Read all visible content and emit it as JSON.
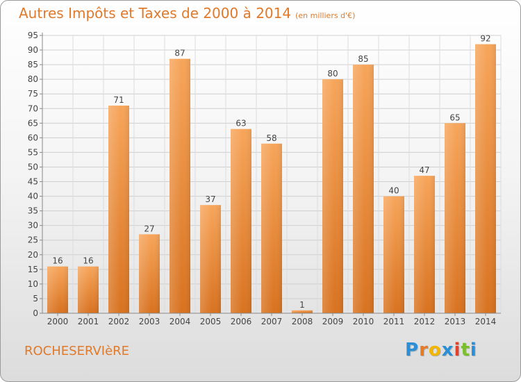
{
  "chart_data": {
    "type": "bar",
    "title": "Autres Impôts et Taxes de 2000 à 2014",
    "subtitle": "(en milliers d'€)",
    "categories": [
      "2000",
      "2001",
      "2002",
      "2003",
      "2004",
      "2005",
      "2006",
      "2007",
      "2008",
      "2009",
      "2010",
      "2011",
      "2012",
      "2013",
      "2014"
    ],
    "values": [
      16,
      16,
      71,
      27,
      87,
      37,
      63,
      58,
      1,
      80,
      85,
      40,
      47,
      65,
      92
    ],
    "ylim": [
      0,
      95
    ],
    "yticks": [
      0,
      5,
      10,
      15,
      20,
      25,
      30,
      35,
      40,
      45,
      50,
      55,
      60,
      65,
      70,
      75,
      80,
      85,
      90,
      95
    ],
    "grid": true,
    "bar_color_top": "#f7a55a",
    "bar_color_bottom": "#d8721f"
  },
  "footer": {
    "commune": "ROCHESERVIèRE",
    "logo_letters": [
      "P",
      "r",
      "o",
      "x",
      "i",
      "t",
      "i"
    ],
    "logo_colors": [
      "#2a8fd6",
      "#e87a26",
      "#f2b600",
      "#2a8fd6",
      "#e4402a",
      "#7bbf2a",
      "#2a8fd6"
    ]
  }
}
